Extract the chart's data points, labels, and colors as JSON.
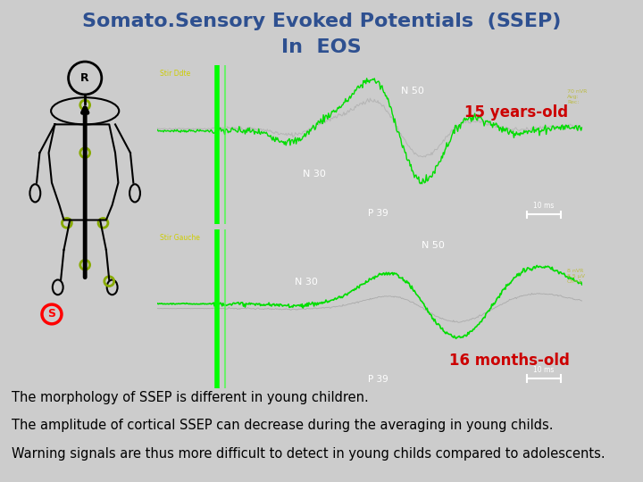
{
  "title_line1": "Somato.Sensory Evoked Potentials  (SSEP)",
  "title_line2": "In  EOS",
  "title_color": "#2E5090",
  "title_fontsize": 16,
  "bg_color": "#CCCCCC",
  "text_lines": [
    "The morphology of SSEP is different in young children.",
    "The amplitude of cortical SSEP can decrease during the averaging in young childs.",
    "Warning signals are thus more difficult to detect in young childs compared to adolescents."
  ],
  "text_fontsize": 10.5,
  "label1": "15 years-old",
  "label2": "16 months-old",
  "label_color": "#CC0000",
  "label_bg": "#FFFFFF",
  "panel_bg": "#111111",
  "stim_color": "#00FF00",
  "trace_color": "#00DD00",
  "trace2_color": "#AAAAAA",
  "label_yellow": "#CCCC00"
}
